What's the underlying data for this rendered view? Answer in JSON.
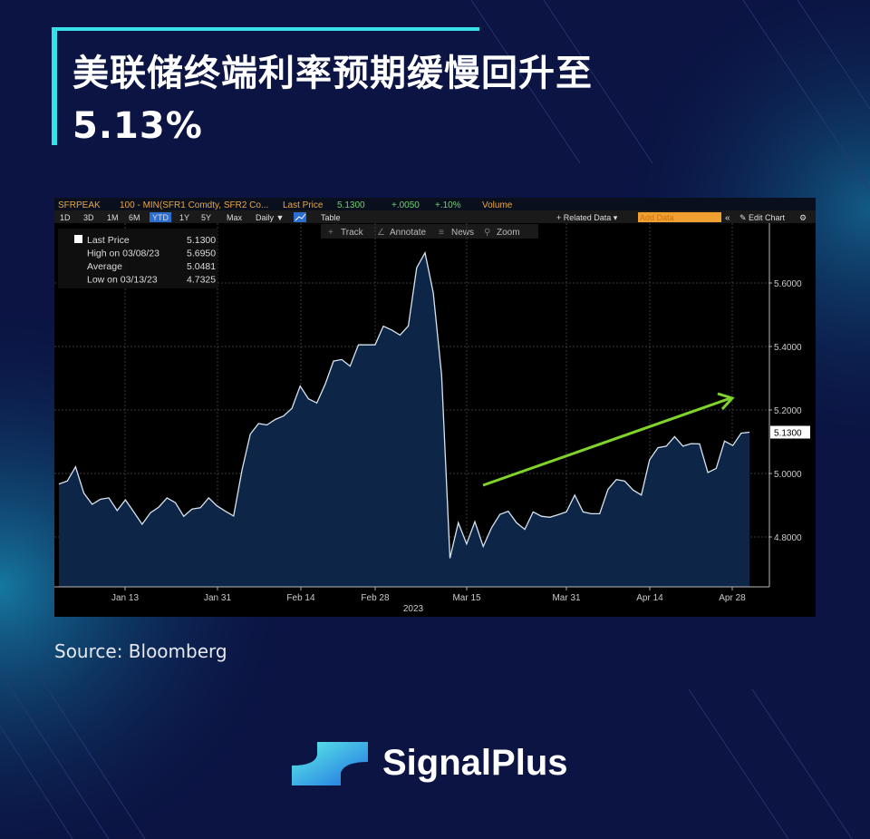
{
  "title_line1": "美联储终端利率预期缓慢回升至",
  "title_line2": "5.13%",
  "source": "Source: Bloomberg",
  "brand": "SignalPlus",
  "colors": {
    "background": "#0b1443",
    "accent": "#37e0e8",
    "series_fill": "#0d2547",
    "series_line": "#d8e4f0",
    "arrow": "#7fd32a",
    "header_orange": "#f0a030"
  },
  "terminal": {
    "ticker": "SFRPEAK",
    "formula": "100 - MIN(SFR1 Comdty, SFR2 Co...",
    "price_label": "Last Price",
    "price": "5.1300",
    "change": "+.0050",
    "change_pct": "+.10%",
    "volume_label": "Volume",
    "periods": [
      "1D",
      "3D",
      "1M",
      "6M",
      "YTD",
      "1Y",
      "5Y",
      "Max"
    ],
    "active_period": "YTD",
    "frequency": "Daily ▼",
    "table_label": "Table",
    "related_data": "+ Related Data ▾",
    "add_data_placeholder": "Add Data",
    "collapse": "«",
    "edit_chart": "✎ Edit Chart",
    "settings": "⚙",
    "tools": [
      "Track",
      "Annotate",
      "News",
      "Zoom"
    ],
    "tool_icons": [
      "+",
      "∠",
      "≡",
      "⚲"
    ]
  },
  "legend": [
    {
      "label": "Last Price",
      "value": "5.1300"
    },
    {
      "label": "High on 03/08/23",
      "value": "5.6950"
    },
    {
      "label": "Average",
      "value": "5.0481"
    },
    {
      "label": "Low on 03/13/23",
      "value": "4.7325"
    }
  ],
  "chart_data": {
    "type": "area",
    "title": "",
    "xlabel": "2023",
    "ylabel": "",
    "ylim": [
      4.64,
      5.79
    ],
    "x_ticks": [
      "Jan 13",
      "Jan 31",
      "Feb 14",
      "Feb 28",
      "Mar 15",
      "Mar 31",
      "Apr 14",
      "Apr 28"
    ],
    "y_ticks": [
      "5.6000",
      "5.4000",
      "5.2000",
      "5.0000",
      "4.8000"
    ],
    "last_value_label": "5.1300",
    "grid": true,
    "annotation": "green upward arrow from mid-March to late April",
    "series": [
      {
        "values": [
          4.967,
          4.976,
          5.021,
          4.938,
          4.903,
          4.919,
          4.923,
          4.883,
          4.917,
          4.879,
          4.84,
          4.876,
          4.894,
          4.923,
          4.908,
          4.865,
          4.888,
          4.892,
          4.923,
          4.898,
          4.881,
          4.866,
          5.01,
          5.124,
          5.157,
          5.153,
          5.17,
          5.181,
          5.205,
          5.275,
          5.235,
          5.222,
          5.281,
          5.354,
          5.359,
          5.338,
          5.405,
          5.405,
          5.405,
          5.464,
          5.452,
          5.436,
          5.465,
          5.648,
          5.695,
          5.569,
          5.31,
          4.733,
          4.845,
          4.778,
          4.848,
          4.77,
          4.829,
          4.871,
          4.881,
          4.845,
          4.824,
          4.879,
          4.865,
          4.862,
          4.87,
          4.879,
          4.932,
          4.879,
          4.873,
          4.873,
          4.95,
          4.981,
          4.976,
          4.948,
          4.932,
          5.043,
          5.081,
          5.086,
          5.116,
          5.086,
          5.094,
          5.093,
          5.003,
          5.016,
          5.102,
          5.088,
          5.127,
          5.13
        ]
      }
    ]
  }
}
